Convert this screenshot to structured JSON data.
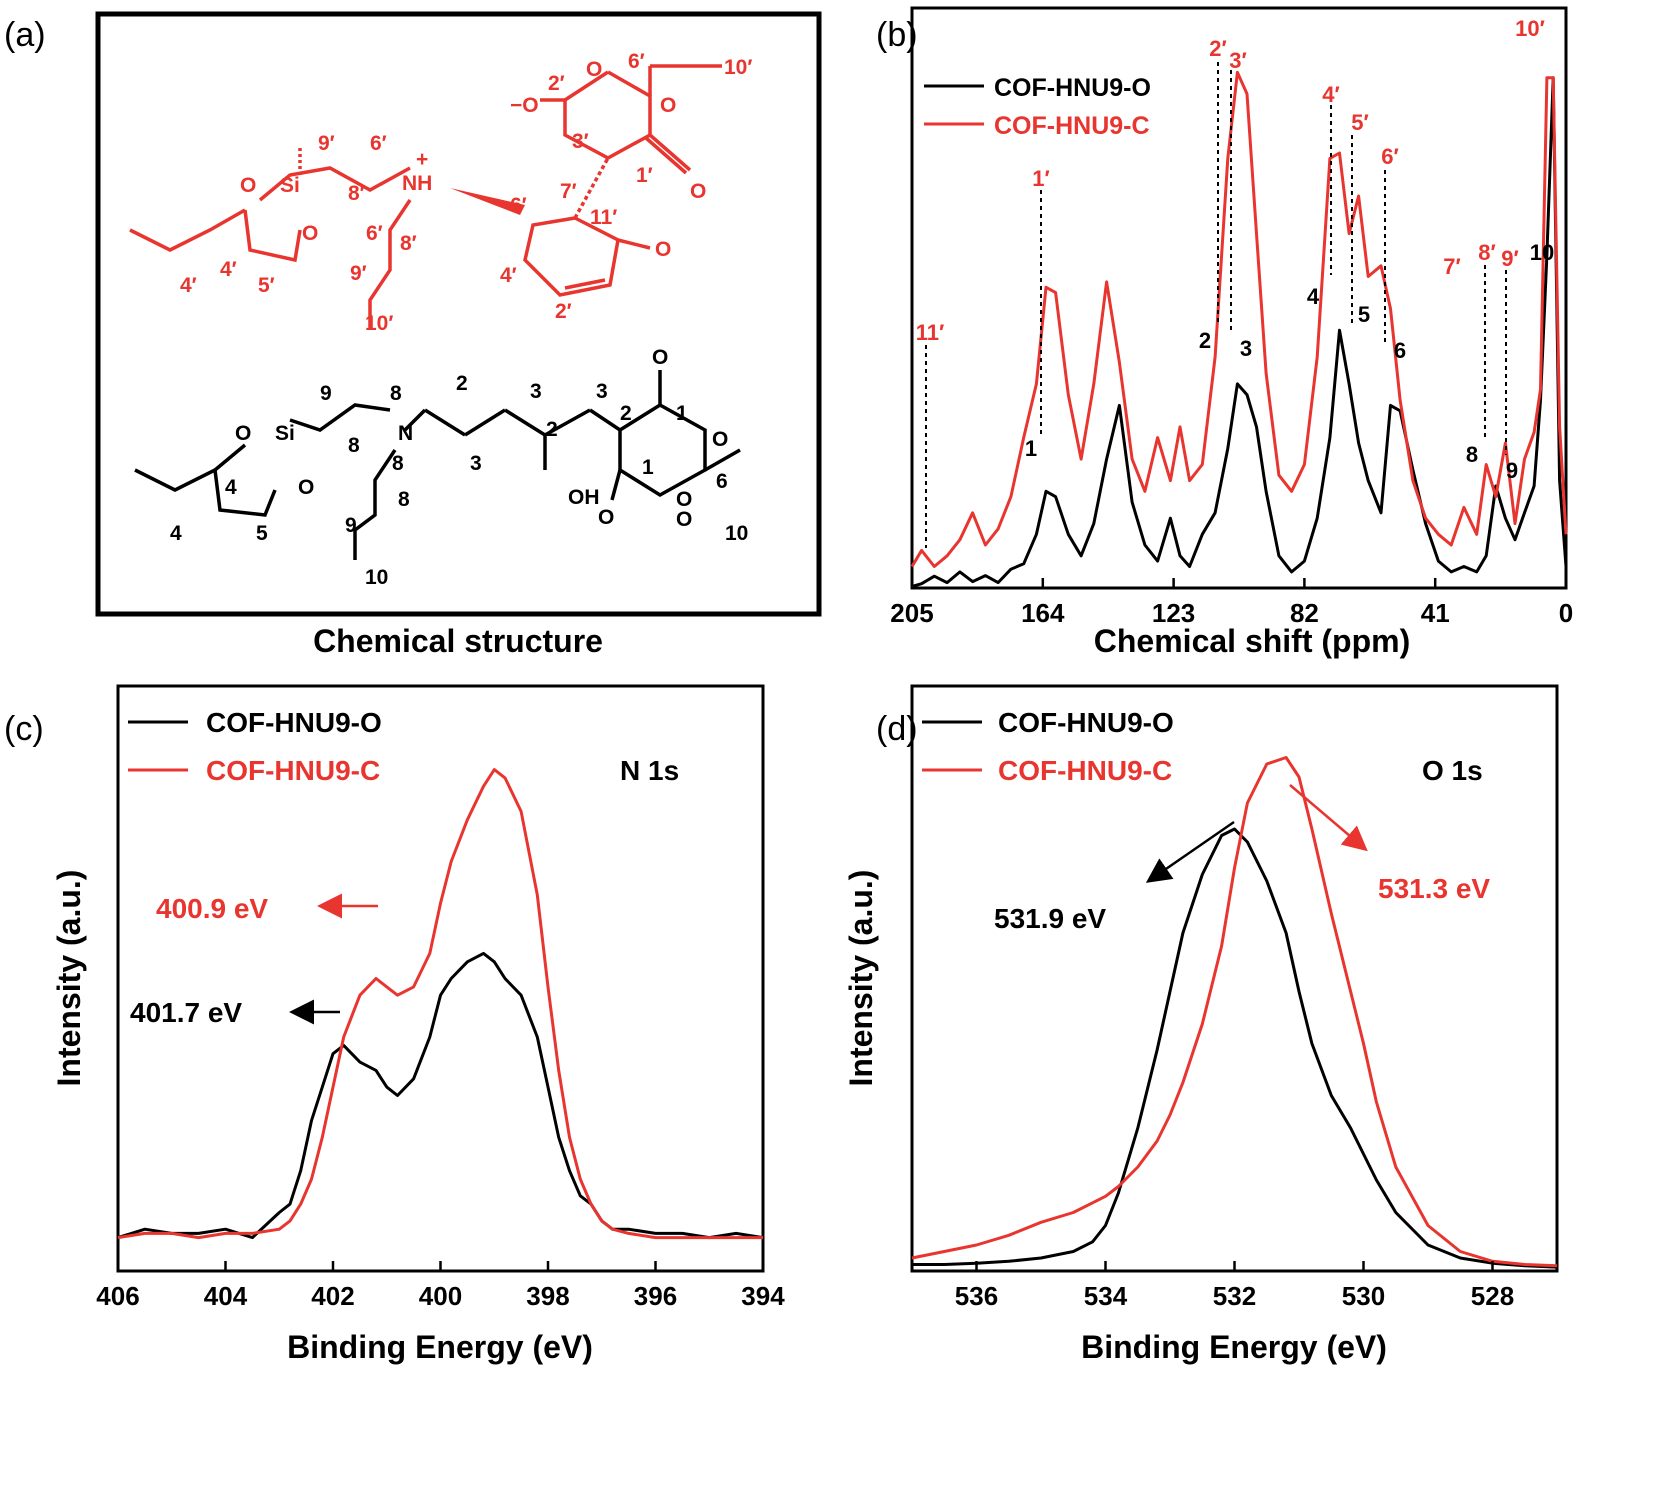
{
  "panel_labels": {
    "a": "(a)",
    "b": "(b)",
    "c": "(c)",
    "d": "(d)"
  },
  "colors": {
    "cof_o": "#000000",
    "cof_c": "#e8352f"
  },
  "panel_a": {
    "caption": "Chemical structure",
    "red_labels": [
      "6′",
      "10′",
      "2′",
      "−O",
      "O",
      "O",
      "3′",
      "1′",
      "O",
      "9′",
      "6′",
      "NH",
      "+",
      "Si",
      "O",
      "O",
      "8′",
      "6′",
      "7′",
      "6′",
      "11′",
      "O",
      "4′",
      "5′",
      "4′",
      "8′",
      "9′",
      "10′",
      "4′",
      "2′"
    ],
    "black_labels": [
      "O",
      "O",
      "1",
      "O",
      "2",
      "3",
      "3",
      "2",
      "9",
      "8",
      "N",
      "Si",
      "O",
      "O",
      "8",
      "8",
      "2",
      "1",
      "6",
      "O",
      "O",
      "3",
      "OH",
      "8",
      "9",
      "10",
      "4",
      "4",
      "5",
      "10"
    ]
  },
  "chart_data": [
    {
      "type": "line",
      "panel": "b",
      "xlabel": "Chemical shift (ppm)",
      "ylabel": "",
      "xlim": [
        205,
        0
      ],
      "x_ticks": [
        205,
        164,
        123,
        82,
        41,
        0
      ],
      "x_tick_labels": [
        "205",
        "164",
        "123",
        "82",
        "41",
        "0"
      ],
      "series": [
        {
          "name": "COF-HNU9-O",
          "color": "#000000",
          "x": [
            205,
            202,
            198,
            194,
            190,
            186,
            182,
            178,
            174,
            170,
            166,
            163,
            160,
            156,
            152,
            148,
            144,
            140,
            136,
            132,
            128,
            124,
            121,
            118,
            114,
            110,
            106,
            103,
            100,
            97,
            94,
            90,
            86,
            82,
            78,
            74,
            71,
            68,
            65,
            62,
            58,
            55,
            52,
            48,
            44,
            40,
            36,
            32,
            28,
            25,
            22,
            19,
            16,
            13,
            10,
            8,
            6,
            4,
            2,
            0
          ],
          "y": [
            0.3,
            0.8,
            2.2,
            1,
            3,
            1.2,
            2.3,
            1,
            3.5,
            4.5,
            10,
            18,
            17,
            10,
            6,
            12,
            24,
            34,
            16,
            8,
            5,
            13,
            6,
            4,
            10,
            14,
            26,
            38,
            36,
            30,
            18,
            6,
            3,
            5,
            13,
            28,
            48,
            38,
            27,
            20,
            14,
            34,
            33,
            22,
            12,
            5,
            3,
            4,
            3,
            6,
            19,
            13,
            9,
            14,
            19,
            35,
            62,
            95,
            20,
            4
          ]
        },
        {
          "name": "COF-HNU9-C",
          "color": "#e8352f",
          "x": [
            205,
            202,
            198,
            194,
            190,
            186,
            182,
            178,
            174,
            170,
            166,
            163,
            160,
            156,
            152,
            148,
            144,
            140,
            136,
            132,
            128,
            124,
            121,
            118,
            114,
            110,
            106,
            103,
            100,
            97,
            94,
            90,
            86,
            82,
            78,
            74,
            71,
            68,
            65,
            62,
            58,
            55,
            52,
            48,
            44,
            40,
            36,
            32,
            28,
            25,
            22,
            19,
            16,
            13,
            10,
            8,
            6,
            4,
            2,
            0
          ],
          "y": [
            4,
            7,
            4,
            6,
            9,
            14,
            8,
            11,
            17,
            28,
            38,
            56,
            55,
            36,
            24,
            38,
            57,
            42,
            24,
            18,
            28,
            20,
            30,
            20,
            23,
            43,
            80,
            96,
            92,
            66,
            40,
            21,
            18,
            23,
            43,
            80,
            81,
            66,
            73,
            58,
            60,
            52,
            35,
            20,
            13,
            10,
            8,
            15,
            10,
            23,
            17,
            27,
            12,
            24,
            29,
            37,
            95,
            95,
            30,
            10
          ]
        }
      ],
      "annotations": [
        "1′",
        "2′",
        "3′",
        "4′",
        "5′",
        "6′",
        "7′",
        "8′",
        "9′",
        "10′",
        "11′",
        "1",
        "2",
        "3",
        "4",
        "5",
        "6",
        "8",
        "9",
        "10"
      ]
    },
    {
      "type": "line",
      "panel": "c",
      "xlabel": "Binding Energy (eV)",
      "ylabel": "Intensity (a.u.)",
      "xlim": [
        406,
        394
      ],
      "x_ticks": [
        406,
        404,
        402,
        400,
        398,
        396,
        394
      ],
      "title_label": "N 1s",
      "series": [
        {
          "name": "COF-HNU9-O",
          "color": "#000000",
          "x": [
            406,
            405.5,
            405,
            404.5,
            404,
            403.5,
            403,
            402.8,
            402.6,
            402.4,
            402.2,
            402,
            401.8,
            401.5,
            401.2,
            401,
            400.8,
            400.5,
            400.2,
            400,
            399.8,
            399.5,
            399.2,
            399,
            398.8,
            398.5,
            398.2,
            398,
            397.8,
            397.6,
            397.4,
            397.2,
            397,
            396.8,
            396.5,
            396,
            395.5,
            395,
            394.5,
            394
          ],
          "y": [
            4,
            5,
            4.5,
            4.5,
            5,
            4,
            7,
            8,
            12,
            18,
            22,
            26,
            27,
            25,
            24,
            22,
            21,
            23,
            28,
            33,
            35,
            37,
            38,
            37,
            35,
            33,
            28,
            22,
            16,
            12,
            9,
            8,
            6,
            5,
            5,
            4.5,
            4.5,
            4,
            4.5,
            4
          ]
        },
        {
          "name": "COF-HNU9-C",
          "color": "#e8352f",
          "x": [
            406,
            405.5,
            405,
            404.5,
            404,
            403.5,
            403,
            402.8,
            402.6,
            402.4,
            402.2,
            402,
            401.8,
            401.5,
            401.2,
            401,
            400.8,
            400.5,
            400.2,
            400,
            399.8,
            399.5,
            399.2,
            399,
            398.8,
            398.5,
            398.2,
            398,
            397.8,
            397.6,
            397.4,
            397.2,
            397,
            396.8,
            396.5,
            396,
            395.5,
            395,
            394.5,
            394
          ],
          "y": [
            4,
            4.5,
            4.5,
            4,
            4.5,
            4.5,
            5,
            6,
            8,
            11,
            16,
            22,
            28,
            33,
            35,
            34,
            33,
            34,
            38,
            44,
            49,
            54,
            58,
            60,
            59,
            55,
            45,
            34,
            24,
            16,
            11,
            8,
            6,
            5,
            4.5,
            4,
            4,
            4,
            4,
            4
          ]
        }
      ],
      "annotations": [
        {
          "text": "400.9 eV",
          "color": "#e8352f"
        },
        {
          "text": "401.7 eV",
          "color": "#000000"
        }
      ]
    },
    {
      "type": "line",
      "panel": "d",
      "xlabel": "Binding Energy (eV)",
      "ylabel": "Intensity (a.u.)",
      "xlim": [
        537,
        527
      ],
      "x_ticks": [
        536,
        534,
        532,
        530,
        528
      ],
      "title_label": "O 1s",
      "series": [
        {
          "name": "COF-HNU9-O",
          "color": "#000000",
          "x": [
            537,
            536.5,
            536,
            535.5,
            535,
            534.5,
            534.2,
            534,
            533.8,
            533.5,
            533.2,
            533,
            532.8,
            532.5,
            532.2,
            532,
            531.8,
            531.5,
            531.2,
            531,
            530.8,
            530.5,
            530.2,
            530,
            529.8,
            529.5,
            529,
            528.5,
            528,
            527.5,
            527
          ],
          "y": [
            1,
            1,
            1.2,
            1.5,
            2,
            3,
            4.5,
            7,
            12,
            22,
            34,
            43,
            52,
            61,
            67,
            68,
            66,
            60,
            52,
            43,
            35,
            27,
            22,
            18,
            14,
            9,
            4,
            2,
            1.2,
            0.8,
            0.6
          ]
        },
        {
          "name": "COF-HNU9-C",
          "color": "#e8352f",
          "x": [
            537,
            536.5,
            536,
            535.5,
            535,
            534.5,
            534.2,
            534,
            533.8,
            533.5,
            533.2,
            533,
            532.8,
            532.5,
            532.2,
            532,
            531.8,
            531.5,
            531.2,
            531,
            530.8,
            530.5,
            530.2,
            530,
            529.8,
            529.5,
            529,
            528.5,
            528,
            527.5,
            527
          ],
          "y": [
            2,
            3,
            4,
            5.5,
            7.5,
            9,
            10.5,
            11.5,
            13,
            16,
            20,
            24,
            29,
            38,
            50,
            62,
            72,
            78,
            79,
            76,
            68,
            55,
            43,
            35,
            26,
            16,
            7,
            3,
            1.5,
            1,
            0.8
          ]
        }
      ],
      "annotations": [
        {
          "text": "531.9 eV",
          "color": "#000000"
        },
        {
          "text": "531.3 eV",
          "color": "#e8352f"
        }
      ]
    }
  ]
}
